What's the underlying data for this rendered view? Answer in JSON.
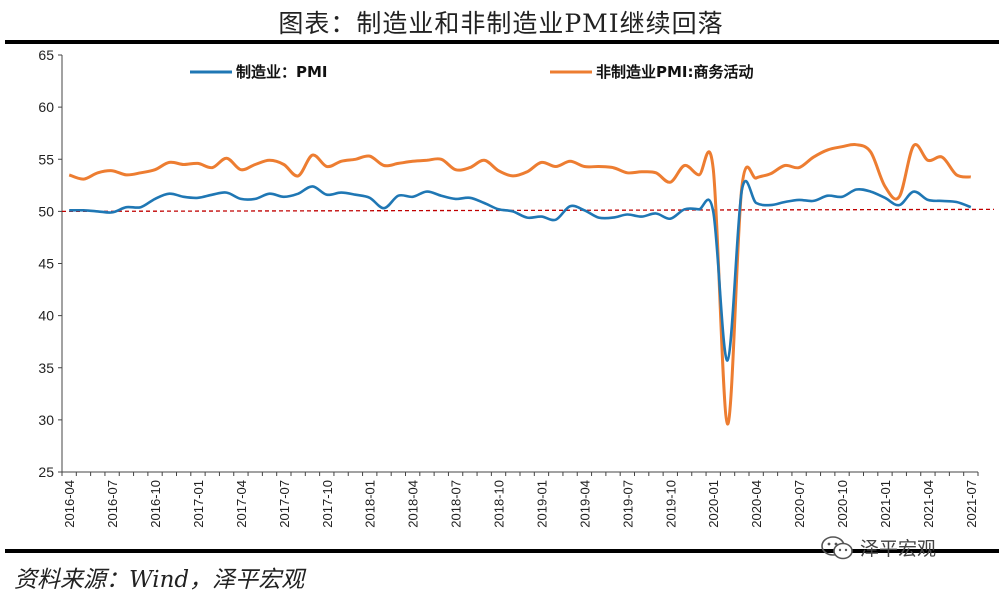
{
  "figure_title": "图表：制造业和非制造业PMI继续回落",
  "source": "资料来源：Wind，泽平宏观",
  "watermark": "泽平宏观",
  "chart_data": {
    "type": "line",
    "ylim": [
      25,
      65
    ],
    "yticks": [
      25,
      30,
      35,
      40,
      45,
      50,
      55,
      60,
      65
    ],
    "x_tick_labels": [
      "2016-04",
      "2016-07",
      "2016-10",
      "2017-01",
      "2017-04",
      "2017-07",
      "2017-10",
      "2018-01",
      "2018-04",
      "2018-07",
      "2018-10",
      "2019-01",
      "2019-04",
      "2019-07",
      "2019-10",
      "2020-01",
      "2020-04",
      "2020-07",
      "2020-10",
      "2021-01",
      "2021-04",
      "2021-07"
    ],
    "x": [
      "2016-04",
      "2016-05",
      "2016-06",
      "2016-07",
      "2016-08",
      "2016-09",
      "2016-10",
      "2016-11",
      "2016-12",
      "2017-01",
      "2017-02",
      "2017-03",
      "2017-04",
      "2017-05",
      "2017-06",
      "2017-07",
      "2017-08",
      "2017-09",
      "2017-10",
      "2017-11",
      "2017-12",
      "2018-01",
      "2018-02",
      "2018-03",
      "2018-04",
      "2018-05",
      "2018-06",
      "2018-07",
      "2018-08",
      "2018-09",
      "2018-10",
      "2018-11",
      "2018-12",
      "2019-01",
      "2019-02",
      "2019-03",
      "2019-04",
      "2019-05",
      "2019-06",
      "2019-07",
      "2019-08",
      "2019-09",
      "2019-10",
      "2019-11",
      "2019-12",
      "2020-01",
      "2020-02",
      "2020-03",
      "2020-04",
      "2020-05",
      "2020-06",
      "2020-07",
      "2020-08",
      "2020-09",
      "2020-10",
      "2020-11",
      "2020-12",
      "2021-01",
      "2021-02",
      "2021-03",
      "2021-04",
      "2021-05",
      "2021-06",
      "2021-07"
    ],
    "series": [
      {
        "name": "制造业：PMI",
        "color": "#1f77b4",
        "values": [
          50.1,
          50.1,
          50.0,
          49.9,
          50.4,
          50.4,
          51.2,
          51.7,
          51.4,
          51.3,
          51.6,
          51.8,
          51.2,
          51.2,
          51.7,
          51.4,
          51.7,
          52.4,
          51.6,
          51.8,
          51.6,
          51.3,
          50.3,
          51.5,
          51.4,
          51.9,
          51.5,
          51.2,
          51.3,
          50.8,
          50.2,
          50.0,
          49.4,
          49.5,
          49.2,
          50.5,
          50.1,
          49.4,
          49.4,
          49.7,
          49.5,
          49.8,
          49.3,
          50.2,
          50.2,
          50.0,
          35.7,
          52.0,
          50.8,
          50.6,
          50.9,
          51.1,
          51.0,
          51.5,
          51.4,
          52.1,
          51.9,
          51.3,
          50.6,
          51.9,
          51.1,
          51.0,
          50.9,
          50.4
        ]
      },
      {
        "name": "非制造业PMI:商务活动",
        "color": "#ed7d31",
        "values": [
          53.5,
          53.1,
          53.7,
          53.9,
          53.5,
          53.7,
          54.0,
          54.7,
          54.5,
          54.6,
          54.2,
          55.1,
          54.0,
          54.5,
          54.9,
          54.5,
          53.4,
          55.4,
          54.3,
          54.8,
          55.0,
          55.3,
          54.4,
          54.6,
          54.8,
          54.9,
          55.0,
          54.0,
          54.2,
          54.9,
          53.9,
          53.4,
          53.8,
          54.7,
          54.3,
          54.8,
          54.3,
          54.3,
          54.2,
          53.7,
          53.8,
          53.7,
          52.8,
          54.4,
          53.5,
          54.1,
          29.6,
          52.3,
          53.2,
          53.6,
          54.4,
          54.2,
          55.2,
          55.9,
          56.2,
          56.4,
          55.7,
          52.4,
          51.4,
          56.3,
          54.9,
          55.2,
          53.5,
          53.3
        ]
      }
    ],
    "reference_line": {
      "value": 50,
      "color": "#c00000"
    }
  }
}
